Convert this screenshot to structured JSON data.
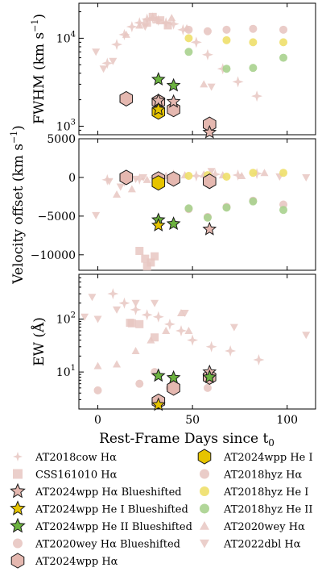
{
  "colors": {
    "wpp_halpha": "#e5b8b0",
    "wpp_halpha_edge": "#1a1a1a",
    "he1": "#e6c400",
    "he2": "#6cb33f",
    "ref_pink": "#e8c7c2",
    "hyz_he1": "#eedf6a",
    "hyz_he2": "#a8d18e"
  },
  "chart_data": {
    "type": "scatter",
    "xlabel": "Rest-Frame Days since t",
    "xlabel_sub": "0",
    "xlim": [
      -10,
      115
    ],
    "xticks": [
      0,
      50,
      100
    ],
    "panels": [
      {
        "id": "fwhm",
        "ylabel": "FWHM (km s",
        "ylabel_sup": "−1",
        "ylabel_tail": ")",
        "yscale": "log",
        "ylim": [
          800,
          25000
        ],
        "yticks": [
          {
            "v": 1000,
            "label": "10",
            "sup": "3"
          },
          {
            "v": 10000,
            "label": "10",
            "sup": "4"
          }
        ],
        "series": [
          {
            "name": "AT2018cow Hα",
            "marker": "star4",
            "color": "#e8c7c2",
            "size": 7,
            "x": [
              5,
              10,
              14,
              18,
              22,
              26,
              29,
              32,
              36,
              40,
              45,
              52,
              58,
              66,
              74,
              84
            ],
            "y": [
              5200,
              8500,
              11000,
              13500,
              15000,
              16500,
              17000,
              16000,
              15000,
              14500,
              12500,
              9000,
              6500,
              4500,
              3200,
              2200
            ]
          },
          {
            "name": "CSS161010 Hα",
            "marker": "square",
            "color": "#e8c7c2",
            "size": 5,
            "x": [
              26,
              29,
              33,
              37
            ],
            "y": [
              15000,
              17500,
              16000,
              14000
            ]
          },
          {
            "name": "AT2020wey Hα Blueshifted",
            "marker": "circle",
            "color": "#e8c7c2",
            "size": 5,
            "x": [
              48,
              58,
              68,
              82,
              98
            ],
            "y": [
              12500,
              12000,
              12500,
              12800,
              12500
            ]
          },
          {
            "name": "AT2020wey Hα",
            "marker": "triangle",
            "color": "#e8c7c2",
            "size": 5,
            "x": [
              15,
              22,
              31,
              39,
              47,
              56
            ],
            "y": [
              11000,
              14000,
              16000,
              17000,
              13000,
              3000
            ]
          },
          {
            "name": "AT2022dbl Hα",
            "marker": "tri_down",
            "color": "#e8c7c2",
            "size": 5,
            "x": [
              -1,
              3,
              8,
              25,
              60
            ],
            "y": [
              7000,
              4500,
              5500,
              13500,
              2800
            ]
          },
          {
            "name": "AT2018hyz He I",
            "marker": "circle",
            "color": "#eedf6a",
            "size": 5,
            "x": [
              48,
              68,
              82,
              98
            ],
            "y": [
              10000,
              9500,
              9000,
              9000
            ]
          },
          {
            "name": "AT2018hyz He II",
            "marker": "circle",
            "color": "#a8d18e",
            "size": 5,
            "x": [
              48,
              68,
              82,
              98
            ],
            "y": [
              7000,
              4500,
              4600,
              6000
            ]
          },
          {
            "name": "AT2024wpp Hα",
            "marker": "hexagon",
            "color": "#e5b8b0",
            "size": 9,
            "x": [
              15,
              32,
              40,
              59
            ],
            "y": [
              2050,
              1900,
              1550,
              1050
            ]
          },
          {
            "name": "AT2024wpp He I",
            "marker": "hexagon",
            "color": "#e6c400",
            "size": 9,
            "x": [
              32
            ],
            "y": [
              1450
            ]
          },
          {
            "name": "AT2024wpp Hα Blueshifted",
            "marker": "star5",
            "color": "#e5b8b0",
            "size": 8,
            "x": [
              32,
              40,
              59
            ],
            "y": [
              1950,
              1900,
              850
            ]
          },
          {
            "name": "AT2024wpp He II Blueshifted",
            "marker": "star5",
            "color": "#6cb33f",
            "size": 8,
            "x": [
              32,
              40
            ],
            "y": [
              3400,
              2900
            ]
          },
          {
            "name": "AT2024wpp He I Blueshifted",
            "marker": "star5",
            "color": "#e6c400",
            "size": 8,
            "x": [
              32
            ],
            "y": [
              1550
            ]
          }
        ]
      },
      {
        "id": "velocity",
        "ylabel": "Velocity offset (km s",
        "ylabel_sup": "−1",
        "ylabel_tail": ")",
        "yscale": "linear",
        "ylim": [
          -12000,
          5000
        ],
        "yticks": [
          {
            "v": 5000,
            "label": "5000"
          },
          {
            "v": 0,
            "label": "0"
          },
          {
            "v": -5000,
            "label": "−5000"
          },
          {
            "v": -10000,
            "label": "−10000"
          }
        ],
        "series": [
          {
            "name": "AT2018cow Hα",
            "marker": "star4",
            "color": "#e8c7c2",
            "size": 7,
            "x": [
              5,
              14,
              22,
              30,
              40,
              52,
              62,
              74,
              84
            ],
            "y": [
              -300,
              -500,
              -200,
              0,
              300,
              200,
              400,
              300,
              500
            ]
          },
          {
            "name": "CSS161010 Hα",
            "marker": "square",
            "color": "#e8c7c2",
            "size": 5,
            "x": [
              22,
              25,
              26,
              28,
              30
            ],
            "y": [
              -9500,
              -10500,
              -11500,
              -11000,
              -10200
            ]
          },
          {
            "name": "AT2020wey Hα Blueshifted",
            "marker": "circle",
            "color": "#e8c7c2",
            "size": 5,
            "x": [
              48,
              58,
              68,
              82,
              98
            ],
            "y": [
              -4100,
              -5100,
              -3800,
              -3000,
              -3500
            ]
          },
          {
            "name": "AT2020wey Hα",
            "marker": "triangle",
            "color": "#e8c7c2",
            "size": 5,
            "x": [
              10,
              18,
              26,
              36,
              46,
              56,
              66,
              76,
              88
            ],
            "y": [
              -2200,
              -1500,
              -300,
              200,
              300,
              400,
              300,
              200,
              600
            ]
          },
          {
            "name": "AT2022dbl Hα",
            "marker": "tri_down",
            "color": "#e8c7c2",
            "size": 5,
            "x": [
              -1,
              6,
              12,
              20,
              24,
              60,
              96,
              110
            ],
            "y": [
              -4900,
              -500,
              -1200,
              -200,
              0,
              800,
              100,
              0
            ]
          },
          {
            "name": "AT2018hyz He I",
            "marker": "circle",
            "color": "#eedf6a",
            "size": 5,
            "x": [
              48,
              58,
              68,
              82,
              98
            ],
            "y": [
              200,
              300,
              100,
              600,
              600
            ]
          },
          {
            "name": "AT2018hyz He II",
            "marker": "circle",
            "color": "#a8d18e",
            "size": 5,
            "x": [
              48,
              58,
              68,
              82,
              98
            ],
            "y": [
              -4000,
              -5200,
              -3900,
              -3100,
              -4200
            ]
          },
          {
            "name": "AT2024wpp Hα",
            "marker": "hexagon",
            "color": "#e5b8b0",
            "size": 9,
            "x": [
              15,
              32,
              40,
              59
            ],
            "y": [
              0,
              -200,
              -200,
              -500
            ]
          },
          {
            "name": "AT2024wpp He I",
            "marker": "hexagon",
            "color": "#e6c400",
            "size": 9,
            "x": [
              32
            ],
            "y": [
              -700
            ]
          },
          {
            "name": "AT2024wpp Hα Blueshifted",
            "marker": "star5",
            "color": "#e5b8b0",
            "size": 8,
            "x": [
              59
            ],
            "y": [
              -6700
            ]
          },
          {
            "name": "AT2024wpp He II Blueshifted",
            "marker": "star5",
            "color": "#6cb33f",
            "size": 8,
            "x": [
              32,
              40
            ],
            "y": [
              -5500,
              -6000
            ]
          },
          {
            "name": "AT2024wpp He I Blueshifted",
            "marker": "star5",
            "color": "#e6c400",
            "size": 8,
            "x": [
              32
            ],
            "y": [
              -6200
            ]
          }
        ]
      },
      {
        "id": "ew",
        "ylabel": "EW (Å)",
        "yscale": "log",
        "ylim": [
          2,
          700
        ],
        "yticks": [
          {
            "v": 10,
            "label": "10",
            "sup": "1"
          },
          {
            "v": 100,
            "label": "10",
            "sup": "2"
          }
        ],
        "series": [
          {
            "name": "AT2018cow Hα",
            "marker": "star4",
            "color": "#e8c7c2",
            "size": 7,
            "x": [
              8,
              14,
              20,
              26,
              32,
              38,
              44,
              50,
              60,
              70,
              85
            ],
            "y": [
              300,
              200,
              150,
              120,
              110,
              80,
              60,
              40,
              30,
              25,
              17
            ]
          },
          {
            "name": "CSS161010 Hα",
            "marker": "square",
            "color": "#e8c7c2",
            "size": 5,
            "x": [
              17,
              18,
              22,
              30
            ],
            "y": [
              85,
              83,
              80,
              45
            ]
          },
          {
            "name": "AT2020wey Hα Blueshifted",
            "marker": "circle",
            "color": "#e8c7c2",
            "size": 5,
            "x": [
              0,
              22,
              30,
              38,
              58
            ],
            "y": [
              4.5,
              6,
              10,
              5,
              5
            ]
          },
          {
            "name": "AT2020wey Hα",
            "marker": "triangle",
            "color": "#e8c7c2",
            "size": 5,
            "x": [
              0,
              10,
              20,
              28,
              36,
              44,
              48
            ],
            "y": [
              13,
              14,
              25,
              40,
              60,
              130,
              60
            ]
          },
          {
            "name": "AT2022dbl Hα",
            "marker": "tri_down",
            "color": "#e8c7c2",
            "size": 5,
            "x": [
              -7,
              -3,
              0,
              10,
              20,
              30,
              46,
              72,
              110
            ],
            "y": [
              110,
              260,
              100,
              150,
              200,
              200,
              130,
              70,
              50
            ]
          },
          {
            "name": "AT2024wpp Hα",
            "marker": "hexagon",
            "color": "#e5b8b0",
            "size": 9,
            "x": [
              32,
              40,
              59
            ],
            "y": [
              2.8,
              5,
              8
            ]
          },
          {
            "name": "AT2024wpp Hα Blueshifted",
            "marker": "star5",
            "color": "#e5b8b0",
            "size": 8,
            "x": [
              59
            ],
            "y": [
              10
            ]
          },
          {
            "name": "AT2024wpp He II Blueshifted",
            "marker": "star5",
            "color": "#6cb33f",
            "size": 8,
            "x": [
              32,
              40,
              59
            ],
            "y": [
              8.5,
              7.8,
              8
            ]
          },
          {
            "name": "AT2024wpp He I Blueshifted",
            "marker": "star5",
            "color": "#e6c400",
            "size": 8,
            "x": [
              32
            ],
            "y": [
              2.4
            ]
          }
        ]
      }
    ],
    "legend": {
      "placement": "bottom",
      "left_column": [
        {
          "label": "AT2018cow Hα",
          "marker": "star4",
          "color": "#e8c7c2"
        },
        {
          "label": "CSS161010 Hα",
          "marker": "square",
          "color": "#e8c7c2"
        },
        {
          "label": "AT2024wpp Hα Blueshifted",
          "marker": "star5",
          "color": "#e5b8b0"
        },
        {
          "label": "AT2024wpp He I Blueshifted",
          "marker": "star5",
          "color": "#e6c400"
        },
        {
          "label": "AT2024wpp He II Blueshifted",
          "marker": "star5",
          "color": "#6cb33f"
        },
        {
          "label": "AT2020wey Hα Blueshifted",
          "marker": "circle",
          "color": "#e8c7c2"
        },
        {
          "label": "AT2024wpp Hα",
          "marker": "hexagon",
          "color": "#e5b8b0"
        }
      ],
      "right_column": [
        {
          "label": "AT2024wpp He I",
          "marker": "hexagon",
          "color": "#e6c400"
        },
        {
          "label": "AT2018hyz Hα",
          "marker": "circle",
          "color": "#e8c7c2"
        },
        {
          "label": "AT2018hyz He I",
          "marker": "circle",
          "color": "#eedf6a"
        },
        {
          "label": "AT2018hyz He II",
          "marker": "circle",
          "color": "#a8d18e"
        },
        {
          "label": "AT2020wey Hα",
          "marker": "triangle",
          "color": "#e8c7c2"
        },
        {
          "label": "AT2022dbl Hα",
          "marker": "tri_down",
          "color": "#e8c7c2"
        }
      ]
    }
  }
}
